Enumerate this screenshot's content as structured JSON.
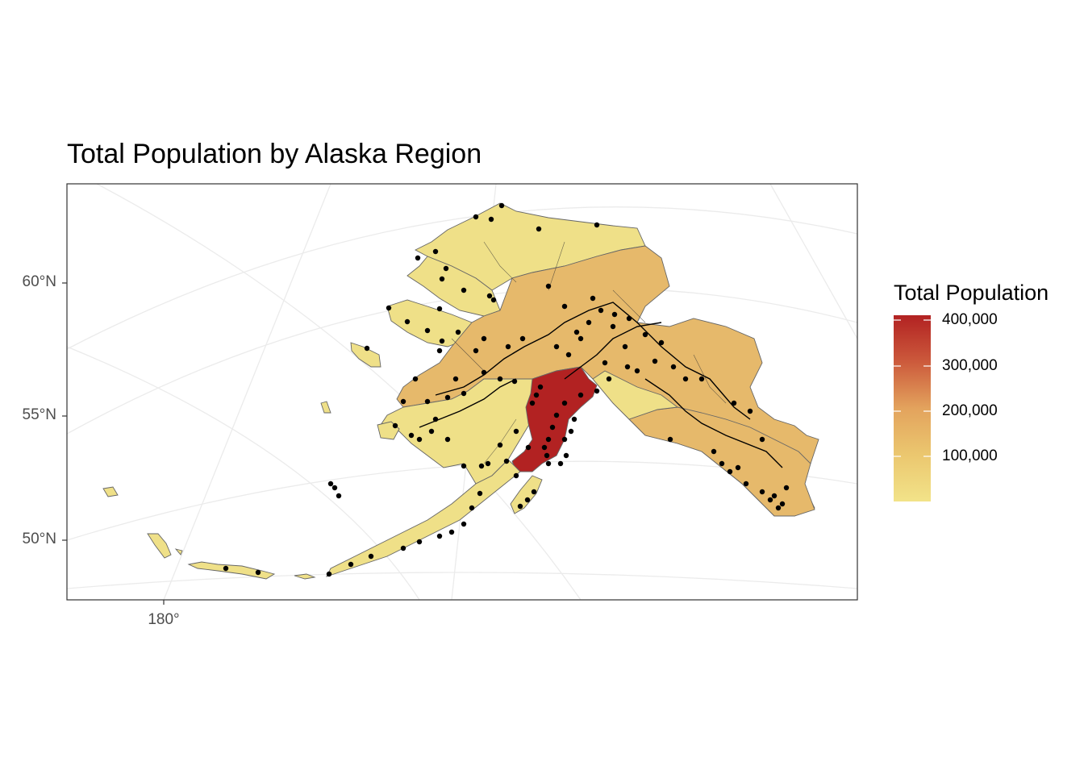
{
  "chart_data": {
    "type": "choropleth-map",
    "title": "Total Population by Alaska Region",
    "axes": {
      "latitude_ticks": [
        {
          "label": "60°N",
          "value": 60
        },
        {
          "label": "55°N",
          "value": 55
        },
        {
          "label": "50°N",
          "value": 50
        }
      ],
      "longitude_ticks": [
        {
          "label": "180°",
          "value": 180
        }
      ]
    },
    "grid": true,
    "legend": {
      "title": "Total Population",
      "placement": "right",
      "scale": "continuous",
      "min": 0,
      "max": 400000,
      "ticks": [
        {
          "label": "400,000",
          "value": 400000
        },
        {
          "label": "300,000",
          "value": 300000
        },
        {
          "label": "200,000",
          "value": 200000
        },
        {
          "label": "100,000",
          "value": 100000
        }
      ],
      "colors": [
        "#f2e285",
        "#e8bf6d",
        "#e3a45f",
        "#d0714a",
        "#b92b27"
      ]
    },
    "region_colors": {
      "low": "#efe088",
      "medium": "#e6b96b",
      "high": "#b22222"
    },
    "point_color": "#000000"
  }
}
